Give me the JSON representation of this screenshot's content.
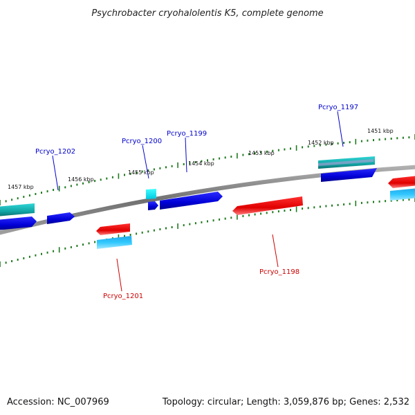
{
  "title": "Psychrobacter cryohalolentis K5, complete genome",
  "footer": {
    "accession": "Accession: NC_007969",
    "summary": "Topology: circular; Length: 3,059,876 bp; Genes: 2,532"
  },
  "colors": {
    "backbone": "#808080",
    "ticks": "#1f7a1f",
    "forward_cds": "#0000e0",
    "reverse_cds": "#e00000",
    "forward_feature": "#20b4b4",
    "reverse_feature": "#20b0f0",
    "forward_label": "#0000cc",
    "reverse_label": "#cc0000"
  },
  "kbp_labels": [
    "1451 kbp",
    "1452 kbp",
    "1453 kbp",
    "1454 kbp",
    "1455 kbp",
    "1456 kbp",
    "1457 kbp"
  ],
  "genes": [
    {
      "name": "Pcryo_1197",
      "strand": "forward"
    },
    {
      "name": "Pcryo_1198",
      "strand": "reverse"
    },
    {
      "name": "Pcryo_1199",
      "strand": "forward"
    },
    {
      "name": "Pcryo_1200",
      "strand": "forward"
    },
    {
      "name": "Pcryo_1201",
      "strand": "reverse"
    },
    {
      "name": "Pcryo_1202",
      "strand": "forward"
    }
  ]
}
